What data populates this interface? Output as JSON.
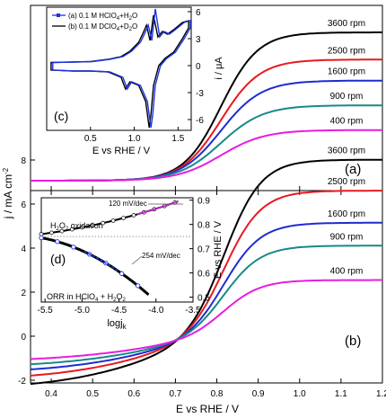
{
  "figure": {
    "xlabel": "E vs RHE / V",
    "ylabel": "j / mA cm",
    "ylabel_sup": "-2",
    "xticks": [
      "0.4",
      "0.5",
      "0.6",
      "0.7",
      "0.8",
      "0.9",
      "1.0",
      "1.1",
      "1.2"
    ],
    "yticks": [
      "-2",
      "0",
      "2",
      "4",
      "6",
      "8"
    ],
    "panel_a_label": "(a)",
    "panel_b_label": "(b)"
  },
  "colors": {
    "3600": "#000000",
    "2500": "#e8191e",
    "1600": "#1f2ccf",
    "900": "#168a86",
    "400": "#e81ce0",
    "inset_a": "#1c33e0",
    "inset_b": "#000000",
    "tafel_dots": "#1c33e0",
    "tafel_label": "#1c33e0",
    "slope_120": "#d01cd6"
  },
  "chart_data": [
    {
      "type": "line",
      "panel": "(a)",
      "x_range": [
        0.35,
        1.2
      ],
      "series": [
        {
          "name": "3600 rpm",
          "color_key": "3600",
          "plateau": 6.0
        },
        {
          "name": "2500 rpm",
          "color_key": "2500",
          "plateau": 4.9
        },
        {
          "name": "1600 rpm",
          "color_key": "1600",
          "plateau": 4.05
        },
        {
          "name": "900 rpm",
          "color_key": "900",
          "plateau": 3.05
        },
        {
          "name": "400 rpm",
          "color_key": "400",
          "plateau": 2.05
        }
      ],
      "x_half": 0.81
    },
    {
      "type": "line",
      "panel": "(b)",
      "x_range": [
        0.35,
        1.2
      ],
      "ylim": [
        -2.6,
        8.6
      ],
      "series": [
        {
          "name": "3600 rpm",
          "color_key": "3600",
          "plateau": 7.7,
          "start": -2.3
        },
        {
          "name": "2500 rpm",
          "color_key": "2500",
          "plateau": 6.35,
          "start": -1.9
        },
        {
          "name": "1600 rpm",
          "color_key": "1600",
          "plateau": 4.95,
          "start": -1.6
        },
        {
          "name": "900 rpm",
          "color_key": "900",
          "plateau": 3.95,
          "start": -1.35
        },
        {
          "name": "400 rpm",
          "color_key": "400",
          "plateau": 2.45,
          "start": -1.1
        }
      ],
      "x_zero": 0.71
    },
    {
      "type": "line",
      "panel": "(c)",
      "xlabel": "E vs RHE / V",
      "ylabel": "i / μA",
      "xlim": [
        0.0,
        1.65
      ],
      "ylim": [
        -7.2,
        6.5
      ],
      "xticks": [
        "0.5",
        "1.0",
        "1.5"
      ],
      "yticks": [
        "-6",
        "-3",
        "0",
        "3",
        "6"
      ],
      "label": "(c)",
      "legend": [
        {
          "label": "(a) 0.1 M HClO",
          "sub": "4",
          "label2": "+H",
          "sub2": "2",
          "label3": "O",
          "color_key": "inset_a"
        },
        {
          "label": "(b) 0.1 M DClO",
          "sub": "4",
          "label2": "+D",
          "sub2": "2",
          "label3": "O",
          "color_key": "inset_b"
        }
      ],
      "legend_position": "top-left"
    },
    {
      "type": "scatter",
      "panel": "(d)",
      "xlabel": "logj",
      "xlabel_sub": "k",
      "ylabel": "E vs RHE / V",
      "xlim": [
        -5.55,
        -3.5
      ],
      "ylim": [
        0.48,
        0.91
      ],
      "xticks": [
        "-5.5",
        "-5.0",
        "-4.5",
        "-4.0",
        "-3.5"
      ],
      "yticks": [
        "0.5",
        "0.6",
        "0.7",
        "0.8",
        "0.9"
      ],
      "label": "(d)",
      "h2o2_text": {
        "a": "H",
        "s1": "2",
        "b": "O",
        "s2": "2",
        "c": " oxidation"
      },
      "orr_text": {
        "a": "ORR in HClO",
        "s1": "4",
        "b": " + H",
        "s2": "2",
        "c": "O",
        "s3": "2"
      },
      "slope_upper": "120 mV/dec",
      "slope_lower": "254 mV/dec",
      "upper_branch": {
        "x0": -5.55,
        "y0": 0.76,
        "x1": -3.7,
        "y1": 0.895
      },
      "lower_branch": {
        "x0": -5.55,
        "y0": 0.745,
        "x1": -4.1,
        "y1": 0.51
      },
      "dotted_level": 0.75
    }
  ]
}
